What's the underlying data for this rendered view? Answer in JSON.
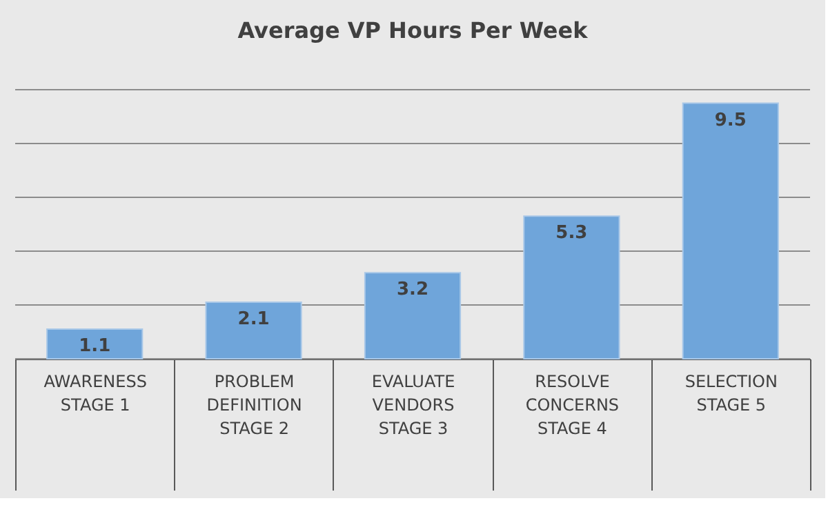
{
  "chart_data": {
    "type": "bar",
    "title": "Average VP Hours Per Week",
    "categories": [
      "AWARENESS\nSTAGE 1",
      "PROBLEM DEFINITION\nSTAGE 2",
      "EVALUATE VENDORS\nSTAGE 3",
      "RESOLVE CONCERNS\nSTAGE 4",
      "SELECTION\nSTAGE 5"
    ],
    "values": [
      1.1,
      2.1,
      3.2,
      5.3,
      9.5
    ],
    "color": "#6fa5da",
    "ylim": [
      0,
      10
    ],
    "yticks": [
      {
        "value": 0,
        "label": null
      },
      {
        "value": 2,
        "label": null
      },
      {
        "value": 4,
        "label": null
      },
      {
        "value": 6,
        "label": null
      },
      {
        "value": 8,
        "label": null
      },
      {
        "value": 10,
        "label": null
      }
    ],
    "grid": "y",
    "data_labels": true,
    "tick_labels": "x"
  }
}
